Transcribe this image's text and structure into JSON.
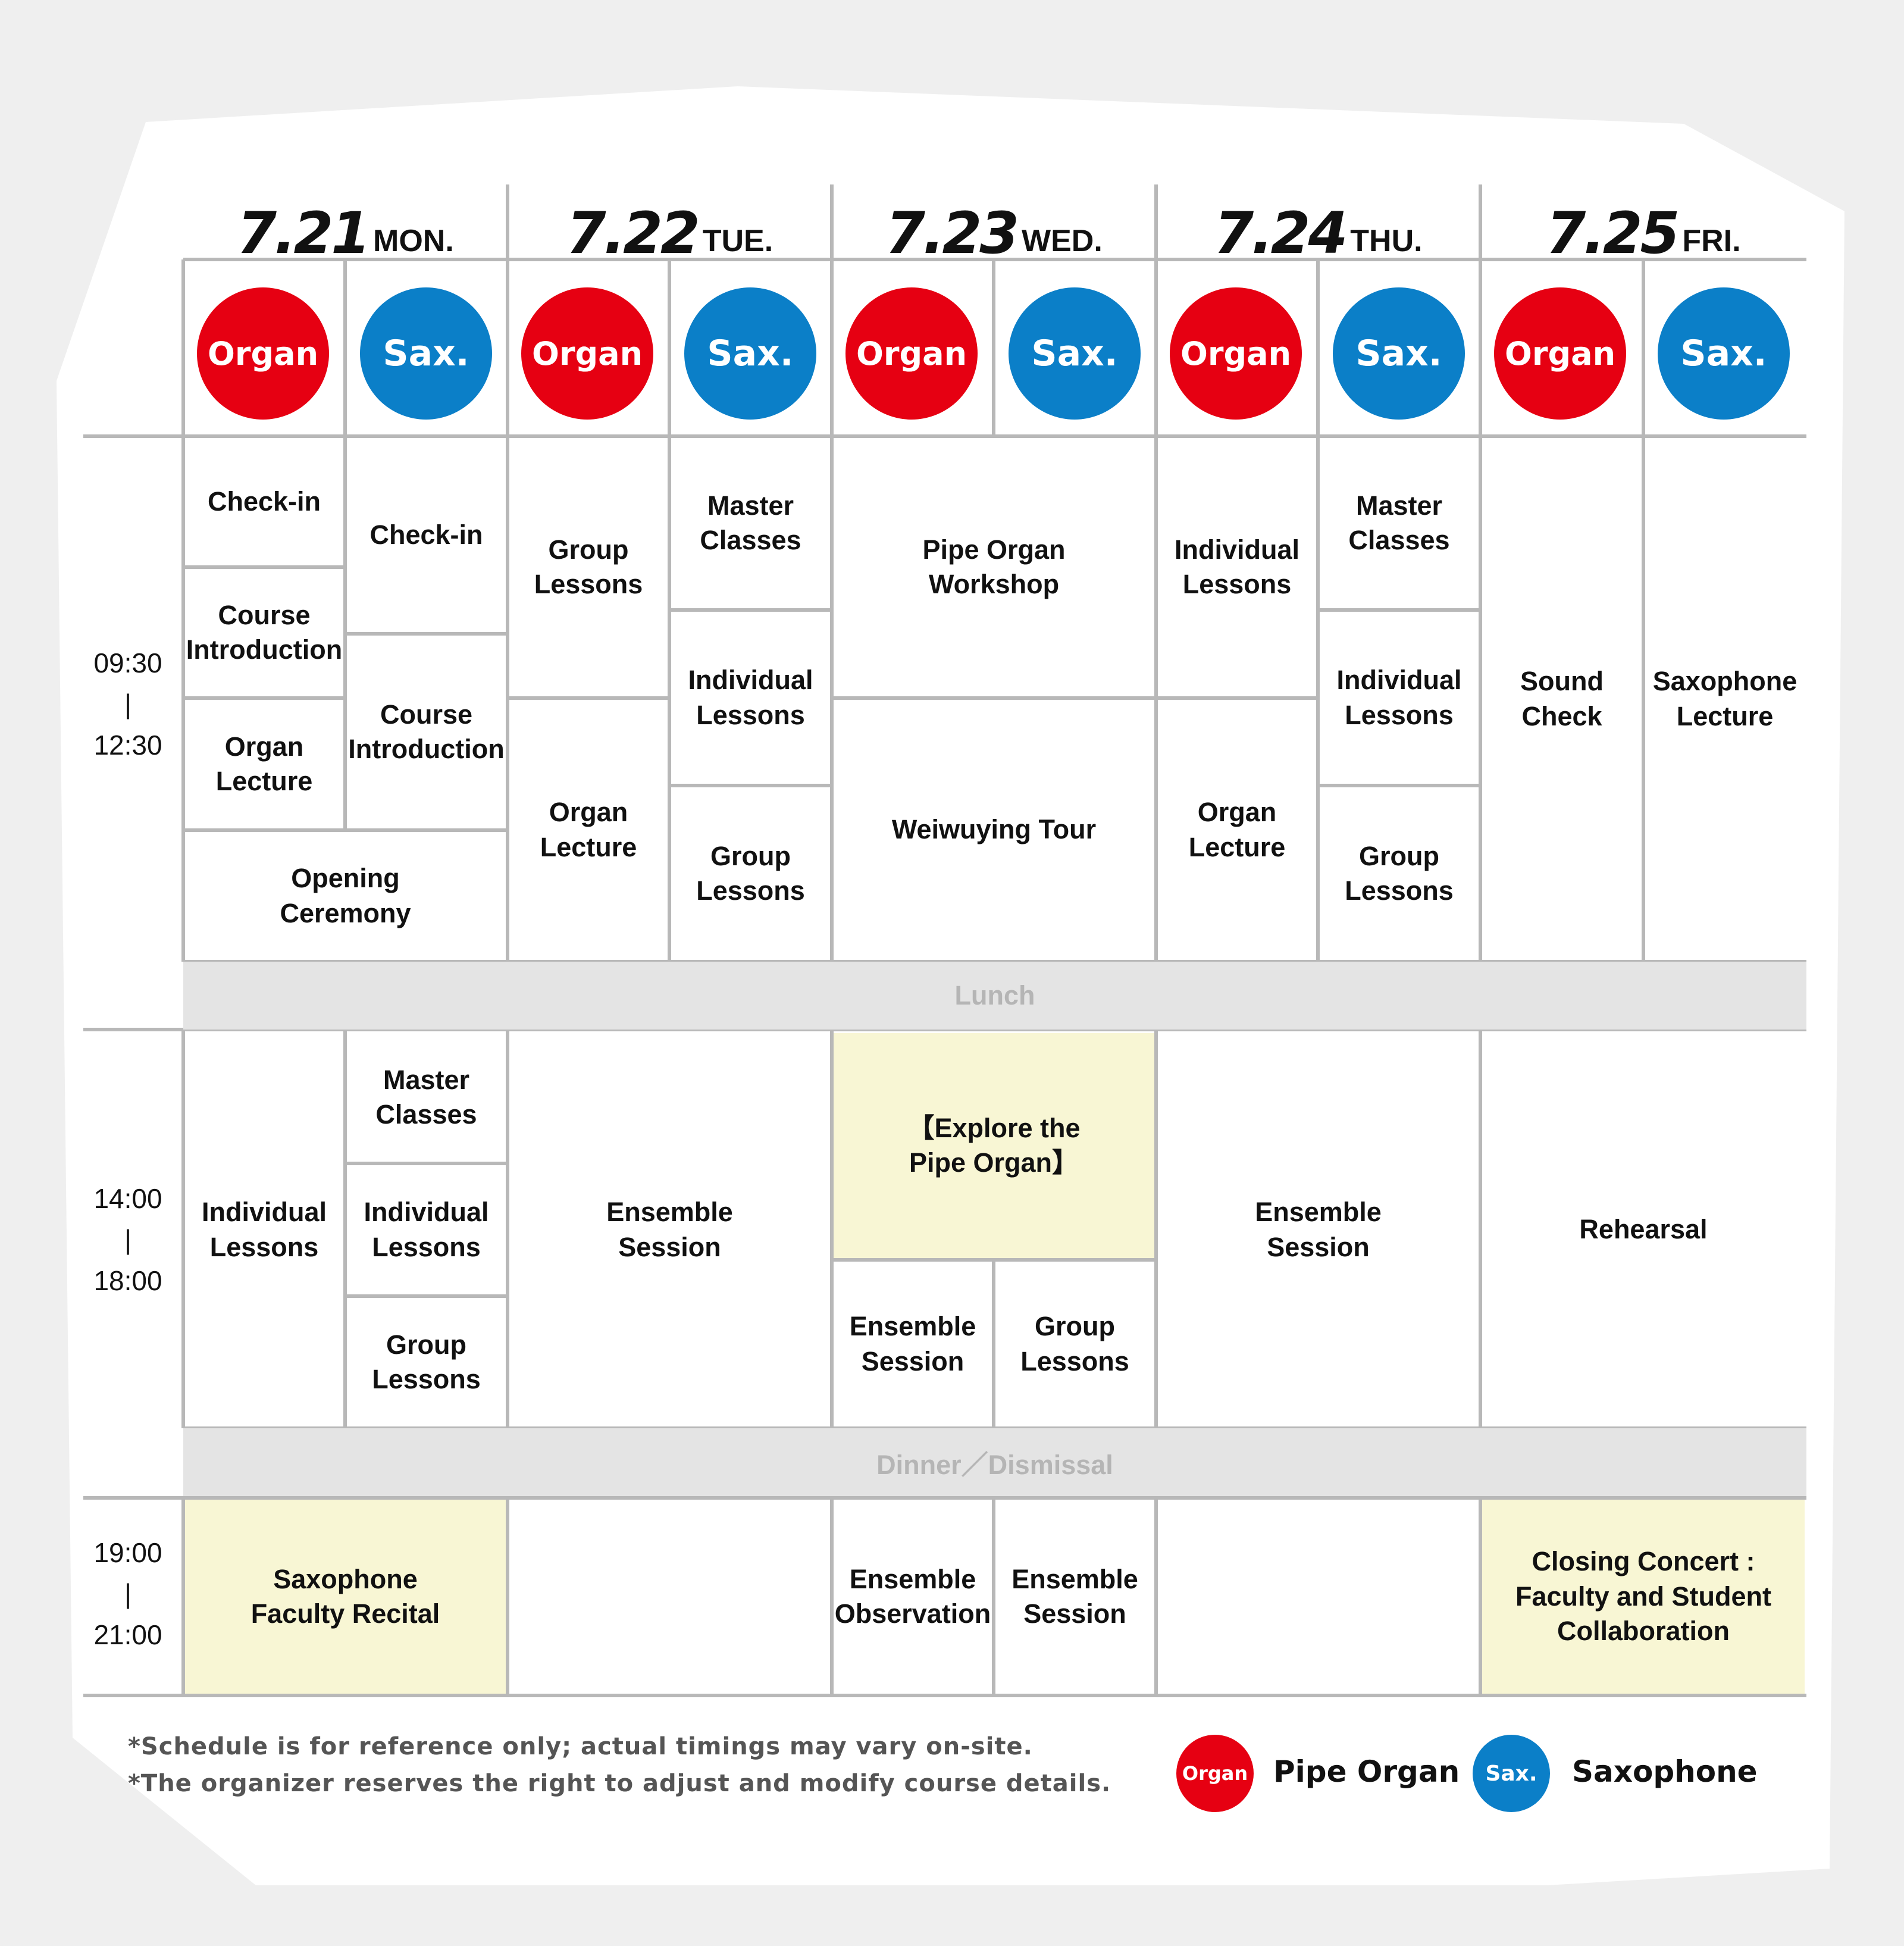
{
  "days": [
    {
      "num": "7.21",
      "weekday": "MON."
    },
    {
      "num": "7.22",
      "weekday": "TUE."
    },
    {
      "num": "7.23",
      "weekday": "WED."
    },
    {
      "num": "7.24",
      "weekday": "THU."
    },
    {
      "num": "7.25",
      "weekday": "FRI."
    }
  ],
  "badges": {
    "organ": "Organ",
    "sax": "Sax."
  },
  "times": {
    "morning": "09:30\n|\n12:30",
    "afternoon": "14:00\n|\n18:00",
    "evening": "19:00\n|\n21:00"
  },
  "bands": {
    "lunch": "Lunch",
    "dinner": "Dinner／Dismissal"
  },
  "morning": {
    "mon_organ_1": "Check-in",
    "mon_organ_2": "Course\nIntroduction",
    "mon_organ_3": "Organ\nLecture",
    "mon_sax_1": "Check-in",
    "mon_sax_2": "Course\nIntroduction",
    "mon_opening": "Opening\nCeremony",
    "tue_organ_1": "Group\nLessons",
    "tue_organ_2": "Organ\nLecture",
    "tue_sax_1": "Master\nClasses",
    "tue_sax_2": "Individual\nLessons",
    "tue_sax_3": "Group\nLessons",
    "wed_1": "Pipe Organ\nWorkshop",
    "wed_2": "Weiwuying Tour",
    "thu_organ_1": "Individual\nLessons",
    "thu_organ_2": "Organ\nLecture",
    "thu_sax_1": "Master\nClasses",
    "thu_sax_2": "Individual\nLessons",
    "thu_sax_3": "Group\nLessons",
    "fri_organ": "Sound\nCheck",
    "fri_sax": "Saxophone\nLecture"
  },
  "afternoon": {
    "mon_organ": "Individual\nLessons",
    "mon_sax_1": "Master\nClasses",
    "mon_sax_2": "Individual\nLessons",
    "mon_sax_3": "Group\nLessons",
    "tue": "Ensemble\nSession",
    "wed_explore": "【Explore the\nPipe Organ】",
    "wed_organ": "Ensemble\nSession",
    "wed_sax": "Group\nLessons",
    "thu": "Ensemble\nSession",
    "fri": "Rehearsal"
  },
  "evening": {
    "mon": "Saxophone\nFaculty Recital",
    "wed_organ": "Ensemble\nObservation",
    "wed_sax": "Ensemble\nSession",
    "fri": "Closing Concert :\nFaculty and Student\nCollaboration"
  },
  "notes": [
    "*Schedule is for reference only; actual timings may vary on-site.",
    "*The organizer reserves the right to adjust and modify course details."
  ],
  "legend": {
    "organ": "Pipe Organ",
    "sax": "Saxophone"
  },
  "colors": {
    "organ": "#e60012",
    "sax": "#0b7fc8",
    "highlight": "#f8f6d4",
    "band": "#e4e4e4",
    "grid": "#b8b8b8"
  }
}
